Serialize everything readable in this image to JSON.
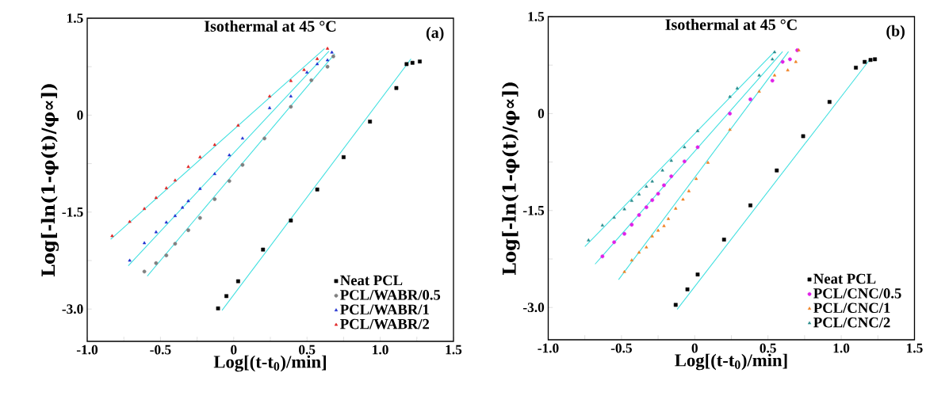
{
  "chart_data": [
    {
      "type": "scatter",
      "title": "Isothermal at 45 °C",
      "annotations": [
        "(a)"
      ],
      "xlabel": "Log[(t-t$_{0}$)/min]",
      "ylabel": "Log[-ln(1-φ(t)/φ∝])",
      "xlim": [
        -1.0,
        1.5
      ],
      "ylim": [
        -3.5,
        1.5
      ],
      "xticks": [
        {
          "value": -1.0,
          "label": "-1.0"
        },
        {
          "value": -0.75,
          "label": null
        },
        {
          "value": -0.5,
          "label": "-0.5"
        },
        {
          "value": -0.25,
          "label": null
        },
        {
          "value": 0,
          "label": "0"
        },
        {
          "value": 0.25,
          "label": null
        },
        {
          "value": 0.5,
          "label": "0.5"
        },
        {
          "value": 0.75,
          "label": null
        },
        {
          "value": 1.0,
          "label": "1.0"
        },
        {
          "value": 1.25,
          "label": null
        },
        {
          "value": 1.5,
          "label": "1.5"
        }
      ],
      "yticks": [
        {
          "value": -3.0,
          "label": "-3.0"
        },
        {
          "value": -2.25,
          "label": null
        },
        {
          "value": -1.5,
          "label": "-1.5"
        },
        {
          "value": -0.75,
          "label": null
        },
        {
          "value": 0,
          "label": "0"
        },
        {
          "value": 0.75,
          "label": null
        },
        {
          "value": 1.5,
          "label": "1.5"
        }
      ],
      "grid": false,
      "legend": "bottom right",
      "series": [
        {
          "name": "Neat PCL",
          "marker": "square",
          "color": "#000000",
          "x": [
            -0.107,
            -0.05,
            0.03,
            0.2,
            0.39,
            0.57,
            0.75,
            0.93,
            1.11,
            1.18,
            1.22,
            1.27
          ],
          "values": [
            -2.99,
            -2.8,
            -2.57,
            -2.08,
            -1.63,
            -1.15,
            -0.65,
            -0.1,
            0.42,
            0.79,
            0.81,
            0.83
          ]
        },
        {
          "name": "PCL/WABR/0.5",
          "marker": "circle",
          "color": "#808080",
          "x": [
            -0.61,
            -0.53,
            -0.46,
            -0.4,
            -0.31,
            -0.23,
            -0.13,
            -0.03,
            0.06,
            0.21,
            0.39,
            0.53,
            0.64,
            0.68
          ],
          "values": [
            -2.42,
            -2.29,
            -2.17,
            -1.99,
            -1.78,
            -1.59,
            -1.3,
            -1.02,
            -0.77,
            -0.36,
            0.13,
            0.54,
            0.75,
            0.91
          ]
        },
        {
          "name": "PCL/WABR/1",
          "marker": "triangle",
          "color": "#1f2fd0",
          "x": [
            -0.71,
            -0.61,
            -0.53,
            -0.46,
            -0.4,
            -0.35,
            -0.31,
            -0.23,
            -0.13,
            -0.03,
            0.06,
            0.245,
            0.39,
            0.5,
            0.57,
            0.64,
            0.67
          ],
          "values": [
            -2.25,
            -1.98,
            -1.81,
            -1.66,
            -1.56,
            -1.43,
            -1.33,
            -1.14,
            -0.91,
            -0.62,
            -0.36,
            0.11,
            0.29,
            0.66,
            0.79,
            0.85,
            0.97
          ]
        },
        {
          "name": "PCL/WABR/2",
          "marker": "triangle",
          "color": "#e02020",
          "x": [
            -0.83,
            -0.71,
            -0.61,
            -0.53,
            -0.46,
            -0.4,
            -0.31,
            -0.23,
            -0.13,
            0.03,
            0.245,
            0.39,
            0.48,
            0.57,
            0.64
          ],
          "values": [
            -1.87,
            -1.65,
            -1.45,
            -1.28,
            -1.13,
            -1.01,
            -0.8,
            -0.65,
            -0.46,
            -0.16,
            0.29,
            0.53,
            0.7,
            0.87,
            1.03
          ]
        },
        {
          "type": "line",
          "color": "#40e0e0",
          "x": [
            -0.08,
            1.21
          ],
          "values": [
            -3.02,
            0.87
          ]
        },
        {
          "type": "line",
          "color": "#40e0e0",
          "x": [
            -0.59,
            0.69
          ],
          "values": [
            -2.49,
            0.95
          ]
        },
        {
          "type": "line",
          "color": "#40e0e0",
          "x": [
            -0.72,
            0.65
          ],
          "values": [
            -2.33,
            0.99
          ]
        },
        {
          "type": "line",
          "color": "#40e0e0",
          "x": [
            -0.84,
            0.62
          ],
          "values": [
            -1.92,
            1.03
          ]
        }
      ]
    },
    {
      "type": "scatter",
      "title": "Isothermal at 45 °C",
      "annotations": [
        "(b)"
      ],
      "xlabel": "Log[(t-t$_{0}$)/min]",
      "ylabel": "Log[-ln(1-φ(t)/φ∝])",
      "xlim": [
        -1.0,
        1.5
      ],
      "ylim": [
        -3.5,
        1.5
      ],
      "xticks": [
        {
          "value": -1.0,
          "label": "-1.0"
        },
        {
          "value": -0.75,
          "label": null
        },
        {
          "value": -0.5,
          "label": "-0.5"
        },
        {
          "value": -0.25,
          "label": null
        },
        {
          "value": 0,
          "label": "0"
        },
        {
          "value": 0.25,
          "label": null
        },
        {
          "value": 0.5,
          "label": "0.5"
        },
        {
          "value": 0.75,
          "label": null
        },
        {
          "value": 1.0,
          "label": "1.0"
        },
        {
          "value": 1.25,
          "label": null
        },
        {
          "value": 1.5,
          "label": "1.5"
        }
      ],
      "yticks": [
        {
          "value": -3.0,
          "label": "-3.0"
        },
        {
          "value": -2.25,
          "label": null
        },
        {
          "value": -1.5,
          "label": "-1.5"
        },
        {
          "value": -0.75,
          "label": null
        },
        {
          "value": 0,
          "label": "0"
        },
        {
          "value": 0.75,
          "label": null
        },
        {
          "value": 1.5,
          "label": "1.5"
        }
      ],
      "grid": false,
      "legend": "bottom right",
      "series": [
        {
          "name": "Neat PCL",
          "marker": "square",
          "color": "#000000",
          "x": [
            -0.13,
            -0.05,
            0.02,
            0.2,
            0.38,
            0.56,
            0.74,
            0.92,
            1.1,
            1.16,
            1.2,
            1.23
          ],
          "values": [
            -2.96,
            -2.72,
            -2.49,
            -1.95,
            -1.42,
            -0.88,
            -0.35,
            0.18,
            0.71,
            0.8,
            0.83,
            0.84
          ]
        },
        {
          "name": "PCL/CNC/0.5",
          "marker": "circle",
          "color": "#e020e8",
          "x": [
            -0.63,
            -0.55,
            -0.48,
            -0.43,
            -0.38,
            -0.33,
            -0.29,
            -0.25,
            -0.21,
            -0.16,
            -0.07,
            0.02,
            0.24,
            0.38,
            0.53,
            0.6,
            0.65,
            0.7
          ],
          "values": [
            -2.21,
            -1.99,
            -1.86,
            -1.72,
            -1.57,
            -1.45,
            -1.34,
            -1.24,
            -1.11,
            -0.97,
            -0.74,
            -0.52,
            0.0,
            0.22,
            0.51,
            0.8,
            0.84,
            0.98
          ]
        },
        {
          "name": "PCL/CNC/1",
          "marker": "triangle",
          "color": "#f08020",
          "x": [
            -0.48,
            -0.43,
            -0.38,
            -0.33,
            -0.29,
            -0.25,
            -0.21,
            -0.18,
            -0.13,
            -0.08,
            -0.04,
            0.01,
            0.09,
            0.24,
            0.44,
            0.545,
            0.635,
            0.69,
            0.71
          ],
          "values": [
            -2.45,
            -2.27,
            -2.15,
            -2.07,
            -1.9,
            -1.81,
            -1.74,
            -1.63,
            -1.47,
            -1.33,
            -1.2,
            -1.01,
            -0.76,
            -0.25,
            0.34,
            0.59,
            0.67,
            0.8,
            0.98
          ]
        },
        {
          "name": "PCL/CNC/2",
          "marker": "triangle",
          "color": "#2a8c8c",
          "x": [
            -0.725,
            -0.63,
            -0.55,
            -0.48,
            -0.43,
            -0.38,
            -0.33,
            -0.29,
            -0.22,
            -0.16,
            -0.07,
            0.02,
            0.24,
            0.29,
            0.44,
            0.53,
            0.545
          ],
          "values": [
            -1.96,
            -1.73,
            -1.61,
            -1.48,
            -1.35,
            -1.25,
            -1.13,
            -1.05,
            -0.88,
            -0.73,
            -0.52,
            -0.27,
            0.26,
            0.39,
            0.59,
            0.84,
            0.95
          ]
        },
        {
          "type": "line",
          "color": "#40e0e0",
          "x": [
            -0.12,
            1.2
          ],
          "values": [
            -3.03,
            0.85
          ]
        },
        {
          "type": "line",
          "color": "#40e0e0",
          "x": [
            -0.52,
            0.64
          ],
          "values": [
            -2.57,
            0.96
          ]
        },
        {
          "type": "line",
          "color": "#40e0e0",
          "x": [
            -0.68,
            0.6
          ],
          "values": [
            -2.33,
            0.96
          ]
        },
        {
          "type": "line",
          "color": "#40e0e0",
          "x": [
            -0.75,
            0.545
          ],
          "values": [
            -2.06,
            0.96
          ]
        }
      ]
    }
  ]
}
